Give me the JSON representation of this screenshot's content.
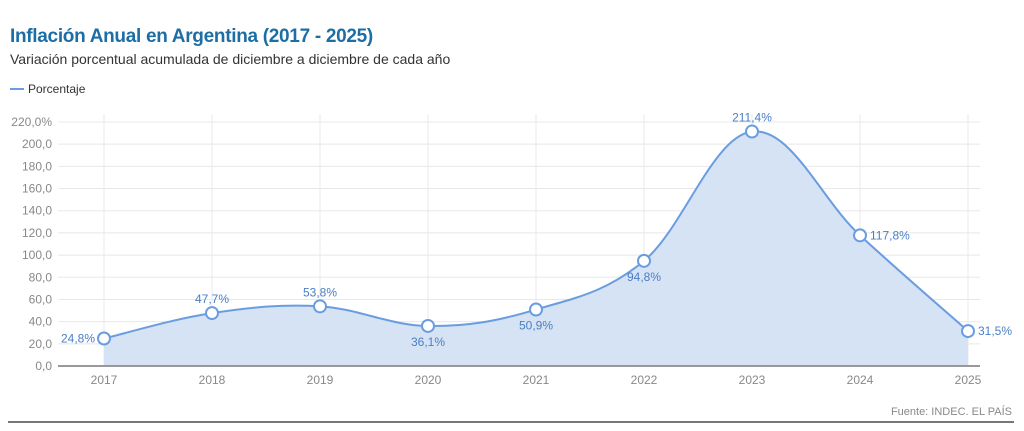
{
  "chart_data": {
    "type": "area",
    "title": "Inflación Anual en Argentina (2017 - 2025)",
    "subtitle": "Variación porcentual acumulada de diciembre a diciembre de cada año",
    "legend": [
      "Porcentaje"
    ],
    "legend_position": "top-left",
    "categories": [
      "2017",
      "2018",
      "2019",
      "2020",
      "2021",
      "2022",
      "2023",
      "2024",
      "2025"
    ],
    "values": [
      24.8,
      47.7,
      53.8,
      36.1,
      50.9,
      94.8,
      211.4,
      117.8,
      31.5
    ],
    "labels": [
      "24,8%",
      "47,7%",
      "53,8%",
      "36,1%",
      "50,9%",
      "94,8%",
      "211,4%",
      "117,8%",
      "31,5%"
    ],
    "yticks": [
      "0,0",
      "20,0",
      "40,0",
      "60,0",
      "80,0",
      "100,0",
      "120,0",
      "140,0",
      "160,0",
      "180,0",
      "200,0",
      "220,0%"
    ],
    "ylim": [
      0,
      220
    ],
    "grid": true,
    "color": "#6a9de0",
    "source": "Fuente: INDEC. EL PAÍS"
  }
}
